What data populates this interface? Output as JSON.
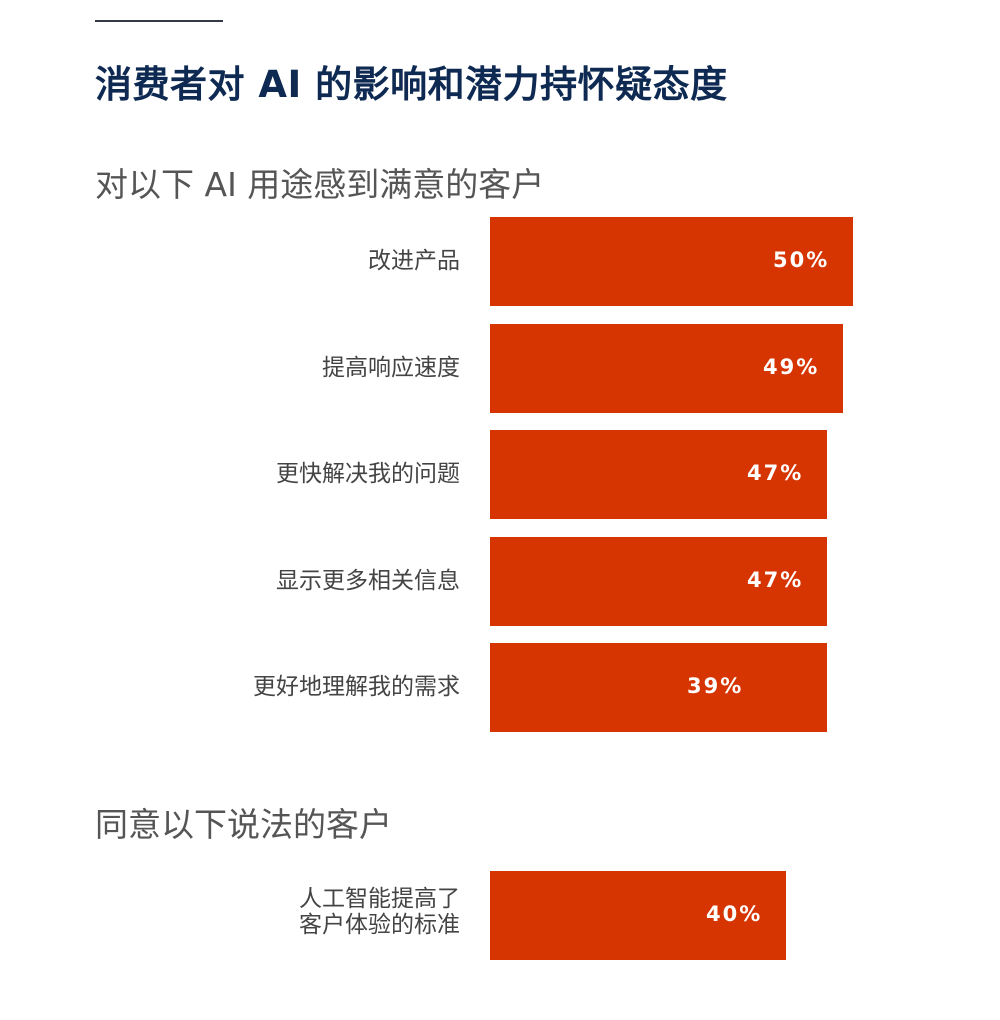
{
  "title": "消费者对 AI 的影响和潜力持怀疑态度",
  "section1_title": "对以下 AI 用途感到满意的客户",
  "section2_title": "同意以下说法的客户",
  "colors": {
    "bar": "#d63400",
    "title": "#0f2a52"
  },
  "chart_data": [
    {
      "type": "bar",
      "orientation": "horizontal",
      "title": "对以下 AI 用途感到满意的客户",
      "categories": [
        "改进产品",
        "提高响应速度",
        "更快解决我的问题",
        "显示更多相关信息",
        "更好地理解我的需求"
      ],
      "values": [
        50,
        49,
        47,
        47,
        39
      ],
      "value_labels": [
        "50%",
        "49%",
        "47%",
        "47%",
        "39%"
      ],
      "unit": "%"
    },
    {
      "type": "bar",
      "orientation": "horizontal",
      "title": "同意以下说法的客户",
      "categories": [
        [
          "人工智能提高了",
          "客户体验的标准"
        ]
      ],
      "values": [
        40
      ],
      "value_labels": [
        "40%"
      ],
      "unit": "%"
    }
  ]
}
